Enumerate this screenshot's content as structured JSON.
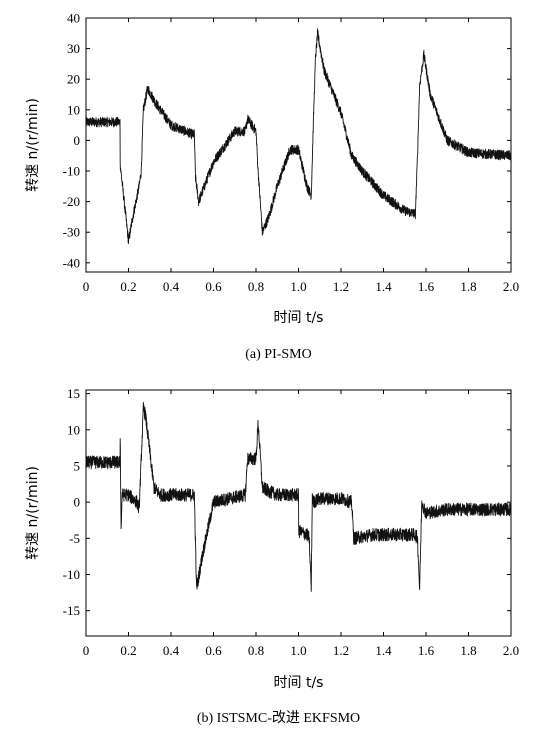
{
  "chart_data": [
    {
      "type": "line",
      "caption": "(a) PI-SMO",
      "xlabel": "时间 t/s",
      "ylabel": "转速 n/(r/min)",
      "xlim": [
        0,
        2.0
      ],
      "ylim": [
        -43,
        40
      ],
      "xticks": [
        "0",
        "0.2",
        "0.4",
        "0.6",
        "0.8",
        "1.0",
        "1.2",
        "1.4",
        "1.6",
        "1.8",
        "2.0"
      ],
      "yticks": [
        "40",
        "30",
        "20",
        "10",
        "0",
        "-10",
        "-20",
        "-30",
        "-40"
      ],
      "series": [
        {
          "x": [
            0,
            0.16,
            0.161,
            0.2,
            0.22,
            0.25,
            0.26,
            0.27,
            0.29,
            0.33,
            0.4,
            0.5,
            0.51,
            0.515,
            0.53,
            0.6,
            0.7,
            0.75,
            0.76,
            0.8,
            0.81,
            0.83,
            0.86,
            0.9,
            0.96,
            1.0,
            1.04,
            1.06,
            1.07,
            1.08,
            1.09,
            1.12,
            1.2,
            1.25,
            1.3,
            1.4,
            1.5,
            1.55,
            1.56,
            1.57,
            1.59,
            1.62,
            1.7,
            1.8,
            2.0
          ],
          "y": [
            6,
            6,
            -8,
            -33,
            -25,
            -15,
            -10,
            10,
            17,
            12,
            5,
            2,
            2,
            -12,
            -20,
            -7,
            3,
            3,
            7,
            3,
            -10,
            -30,
            -25,
            -15,
            -3,
            -3,
            -15,
            -18,
            6,
            27,
            35,
            23,
            9,
            -5,
            -10,
            -18,
            -23,
            -24,
            -5,
            18,
            28,
            15,
            0,
            -4,
            -5
          ]
        }
      ]
    },
    {
      "type": "line",
      "caption": "(b) ISTSMC-改进 EKFSMO",
      "xlabel": "时间 t/s",
      "ylabel": "转速 n/(r/min)",
      "xlim": [
        0,
        2.0
      ],
      "ylim": [
        -18.5,
        15.5
      ],
      "xticks": [
        "0",
        "0.2",
        "0.4",
        "0.6",
        "0.8",
        "1.0",
        "1.2",
        "1.4",
        "1.6",
        "1.8",
        "2.0"
      ],
      "yticks": [
        "15",
        "10",
        "5",
        "0",
        "-5",
        "-10",
        "-15"
      ],
      "series": [
        {
          "x": [
            0,
            0.16,
            0.161,
            0.165,
            0.17,
            0.2,
            0.24,
            0.25,
            0.27,
            0.28,
            0.32,
            0.35,
            0.4,
            0.5,
            0.51,
            0.52,
            0.55,
            0.6,
            0.75,
            0.76,
            0.8,
            0.81,
            0.83,
            0.86,
            0.9,
            1.0,
            1.001,
            1.04,
            1.05,
            1.06,
            1.065,
            1.07,
            1.1,
            1.2,
            1.25,
            1.26,
            1.35,
            1.5,
            1.55,
            1.56,
            1.57,
            1.58,
            1.6,
            1.7,
            1.8,
            2.0
          ],
          "y": [
            5.5,
            5.5,
            10,
            -4,
            1,
            1,
            0,
            -1,
            13,
            12,
            2,
            1,
            1,
            1,
            1,
            -12,
            -7,
            0,
            1,
            6,
            6,
            11,
            2,
            1.5,
            1,
            1,
            -4,
            -4.5,
            -5,
            -12,
            1,
            0,
            0.5,
            0.5,
            0,
            -5,
            -4.5,
            -4.5,
            -4.5,
            -5,
            -12,
            0,
            -1.5,
            -1,
            -1,
            -1
          ]
        }
      ]
    }
  ]
}
